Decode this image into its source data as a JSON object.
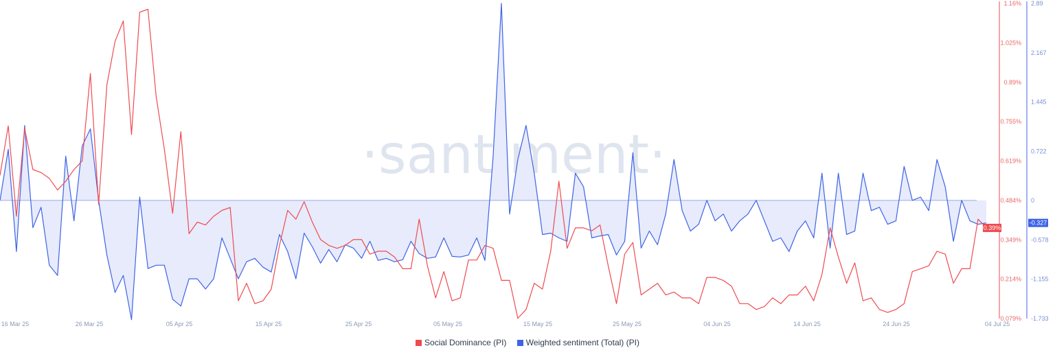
{
  "watermark": "·santiment·",
  "colors": {
    "social": "#ef4a4f",
    "sentiment": "#3e63e6",
    "fill": "#e7ebfb",
    "baseline": "#9aaae8"
  },
  "chart_data": {
    "type": "line",
    "x_ticks": [
      "16 Mar 25",
      "26 Mar 25",
      "05 Apr 25",
      "15 Apr 25",
      "25 Apr 25",
      "05 May 25",
      "15 May 25",
      "25 May 25",
      "04 Jun 25",
      "14 Jun 25",
      "24 Jun 25",
      "04 Jul 25"
    ],
    "y_left": {
      "ticks": [
        "1.16%",
        "1.025%",
        "0.89%",
        "0.755%",
        "0.619%",
        "0.484%",
        "0.349%",
        "0.214%",
        "0.079%"
      ],
      "range": [
        0.079,
        1.16
      ]
    },
    "y_right": {
      "ticks": [
        "2.89",
        "2.167",
        "1.445",
        "0.722",
        "0",
        "-0.578",
        "-1.155",
        "-1.733"
      ],
      "range": [
        -1.733,
        2.89
      ]
    },
    "last_values": {
      "social": "0.39%",
      "sentiment": "-0.327"
    },
    "legend": [
      "Social Dominance (PI)",
      "Weighted sentiment (Total) (PI)"
    ],
    "x_start": "2025-03-16",
    "x_end": "2025-07-04",
    "series": [
      {
        "name": "Social Dominance (PI)",
        "axis": "left",
        "values": [
          0.57,
          0.74,
          0.43,
          0.73,
          0.59,
          0.58,
          0.56,
          0.52,
          0.55,
          0.59,
          0.62,
          0.92,
          0.47,
          0.88,
          1.03,
          1.1,
          0.71,
          1.13,
          1.14,
          0.84,
          0.66,
          0.44,
          0.72,
          0.37,
          0.41,
          0.4,
          0.43,
          0.45,
          0.46,
          0.14,
          0.2,
          0.13,
          0.14,
          0.18,
          0.33,
          0.45,
          0.42,
          0.48,
          0.41,
          0.35,
          0.33,
          0.32,
          0.33,
          0.35,
          0.35,
          0.3,
          0.31,
          0.31,
          0.29,
          0.25,
          0.25,
          0.42,
          0.26,
          0.15,
          0.24,
          0.14,
          0.15,
          0.28,
          0.28,
          0.33,
          0.32,
          0.21,
          0.21,
          0.08,
          0.11,
          0.2,
          0.18,
          0.31,
          0.55,
          0.32,
          0.39,
          0.39,
          0.38,
          0.4,
          0.26,
          0.13,
          0.3,
          0.34,
          0.16,
          0.18,
          0.2,
          0.16,
          0.17,
          0.15,
          0.15,
          0.13,
          0.22,
          0.22,
          0.21,
          0.19,
          0.13,
          0.13,
          0.11,
          0.12,
          0.15,
          0.13,
          0.16,
          0.16,
          0.19,
          0.14,
          0.23,
          0.39,
          0.29,
          0.2,
          0.27,
          0.14,
          0.15,
          0.11,
          0.1,
          0.11,
          0.13,
          0.24,
          0.25,
          0.26,
          0.31,
          0.3,
          0.2,
          0.25,
          0.25,
          0.42,
          0.39
        ]
      },
      {
        "name": "Weighted sentiment (Total) (PI)",
        "axis": "right",
        "values": [
          0.0,
          0.75,
          -0.75,
          1.1,
          -0.4,
          -0.1,
          -0.95,
          -1.1,
          0.65,
          -0.3,
          0.8,
          1.05,
          0.0,
          -0.8,
          -1.35,
          -1.1,
          -1.75,
          0.05,
          -1.0,
          -0.95,
          -0.95,
          -1.45,
          -1.55,
          -1.15,
          -1.15,
          -1.3,
          -1.15,
          -0.55,
          -0.85,
          -1.15,
          -0.9,
          -0.85,
          -0.98,
          -1.05,
          -0.5,
          -0.75,
          -1.15,
          -0.48,
          -0.68,
          -0.92,
          -0.72,
          -0.9,
          -0.65,
          -0.7,
          -0.85,
          -0.6,
          -0.88,
          -0.85,
          -0.9,
          -0.87,
          -0.6,
          -0.78,
          -0.85,
          -0.83,
          -0.55,
          -0.82,
          -0.83,
          -0.8,
          -0.55,
          -0.88,
          0.65,
          2.89,
          -0.2,
          0.6,
          1.1,
          0.4,
          -0.5,
          -0.48,
          -0.55,
          -0.6,
          0.4,
          0.2,
          -0.55,
          -0.52,
          -0.5,
          -0.8,
          -0.6,
          0.7,
          -0.7,
          -0.45,
          -0.65,
          -0.2,
          0.6,
          -0.15,
          -0.45,
          -0.35,
          0.0,
          -0.3,
          -0.2,
          -0.45,
          -0.3,
          -0.2,
          0.0,
          -0.3,
          -0.6,
          -0.55,
          -0.75,
          -0.45,
          -0.3,
          -0.55,
          0.4,
          -0.7,
          0.4,
          -0.5,
          -0.45,
          0.4,
          -0.15,
          -0.1,
          -0.35,
          -0.3,
          0.5,
          0.0,
          0.05,
          -0.15,
          0.6,
          0.2,
          -0.6,
          0.0,
          -0.3,
          -0.35,
          -0.33
        ]
      }
    ],
    "grid": false,
    "legend_position": "bottom-center"
  }
}
